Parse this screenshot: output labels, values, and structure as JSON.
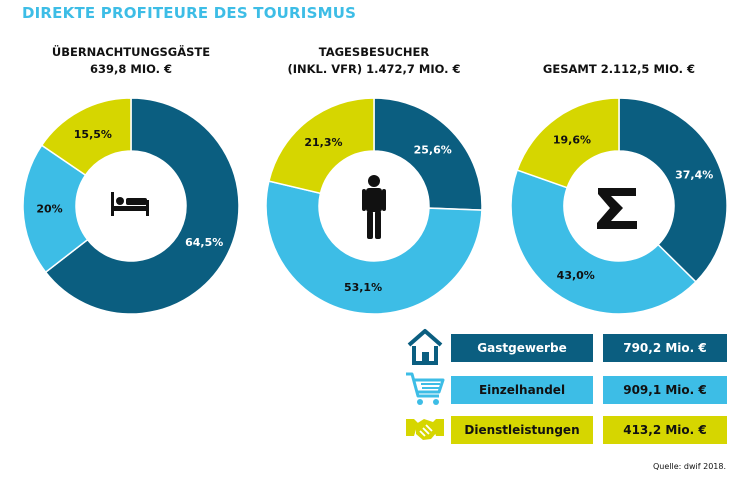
{
  "title": "DIREKTE PROFITEURE DES TOURISMUS",
  "colors": {
    "dark_blue": "#0b5e80",
    "light_blue": "#3dbde6",
    "yellow": "#d6d600",
    "title": "#3dbde6"
  },
  "chart_data": [
    {
      "type": "pie",
      "subtype": "donut",
      "title_lines": [
        "ÜBERNACHTUNGSGÄSTE",
        "639,8 MIO. €"
      ],
      "center_icon": "bed-icon",
      "slices": [
        {
          "category": "Gastgewerbe",
          "value": 64.5,
          "label": "64,5%"
        },
        {
          "category": "Einzelhandel",
          "value": 20.0,
          "label": "20%"
        },
        {
          "category": "Dienstleistungen",
          "value": 15.5,
          "label": "15,5%"
        }
      ]
    },
    {
      "type": "pie",
      "subtype": "donut",
      "title_lines": [
        "TAGESBESUCHER",
        "(INKL. VFR) 1.472,7 MIO. €"
      ],
      "center_icon": "person-icon",
      "slices": [
        {
          "category": "Gastgewerbe",
          "value": 25.6,
          "label": "25,6%"
        },
        {
          "category": "Einzelhandel",
          "value": 53.1,
          "label": "53,1%"
        },
        {
          "category": "Dienstleistungen",
          "value": 21.3,
          "label": "21,3%"
        }
      ]
    },
    {
      "type": "pie",
      "subtype": "donut",
      "title_lines": [
        "GESAMT 2.112,5 MIO. €"
      ],
      "center_icon": "sigma-icon",
      "slices": [
        {
          "category": "Gastgewerbe",
          "value": 37.4,
          "label": "37,4%"
        },
        {
          "category": "Einzelhandel",
          "value": 43.0,
          "label": "43,0%"
        },
        {
          "category": "Dienstleistungen",
          "value": 19.6,
          "label": "19,6%"
        }
      ]
    }
  ],
  "legend": [
    {
      "icon": "house-icon",
      "category": "Gastgewerbe",
      "value": "790,2 Mio. €",
      "color": "#0b5e80",
      "text_color": "#ffffff"
    },
    {
      "icon": "shopping-cart-icon",
      "category": "Einzelhandel",
      "value": "909,1 Mio. €",
      "color": "#3dbde6",
      "text_color": "#111111"
    },
    {
      "icon": "handshake-icon",
      "category": "Dienstleistungen",
      "value": "413,2 Mio. €",
      "color": "#d6d600",
      "text_color": "#111111"
    }
  ],
  "source": "Quelle: dwif 2018."
}
